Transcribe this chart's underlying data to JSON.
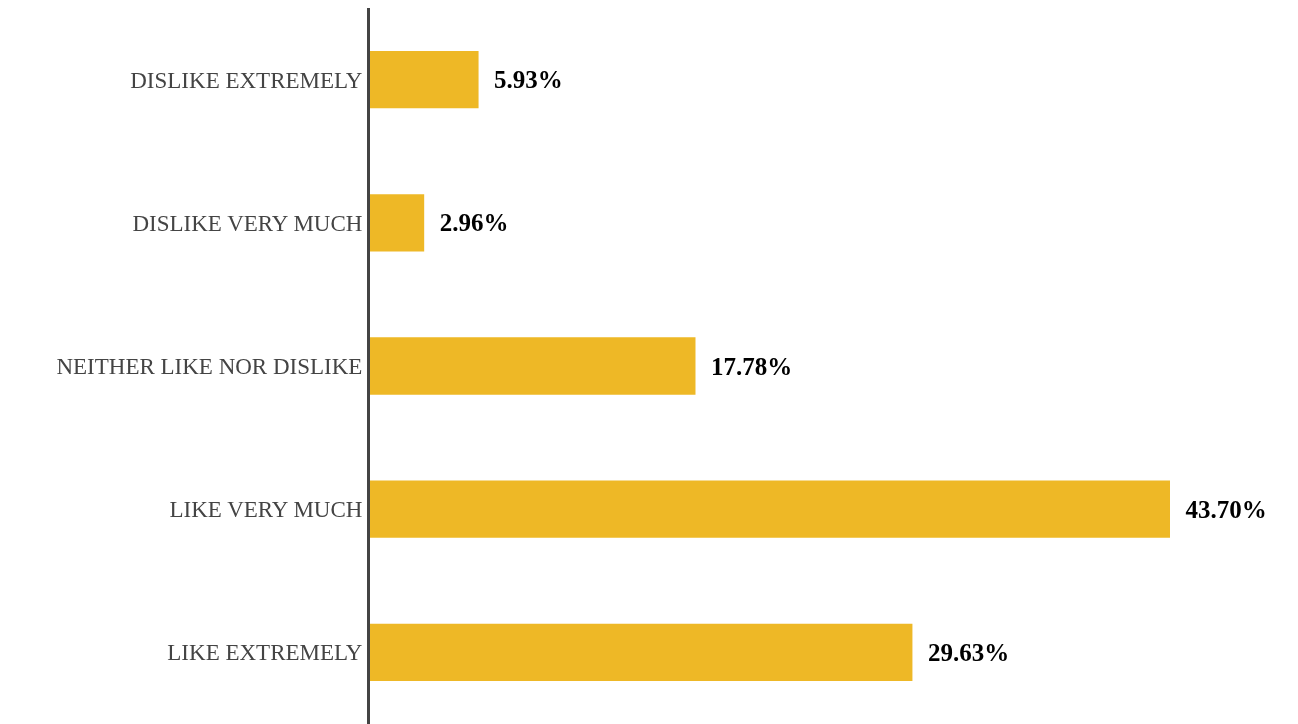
{
  "chart_data": {
    "type": "bar",
    "orientation": "horizontal",
    "categories": [
      "DISLIKE EXTREMELY",
      "DISLIKE VERY MUCH",
      "NEITHER LIKE NOR DISLIKE",
      "LIKE VERY MUCH",
      "LIKE EXTREMELY"
    ],
    "values": [
      5.93,
      2.96,
      17.78,
      43.7,
      29.63
    ],
    "value_labels": [
      "5.93%",
      "2.96%",
      "17.78%",
      "43.70%",
      "29.63%"
    ],
    "color": "#eeb826"
  }
}
